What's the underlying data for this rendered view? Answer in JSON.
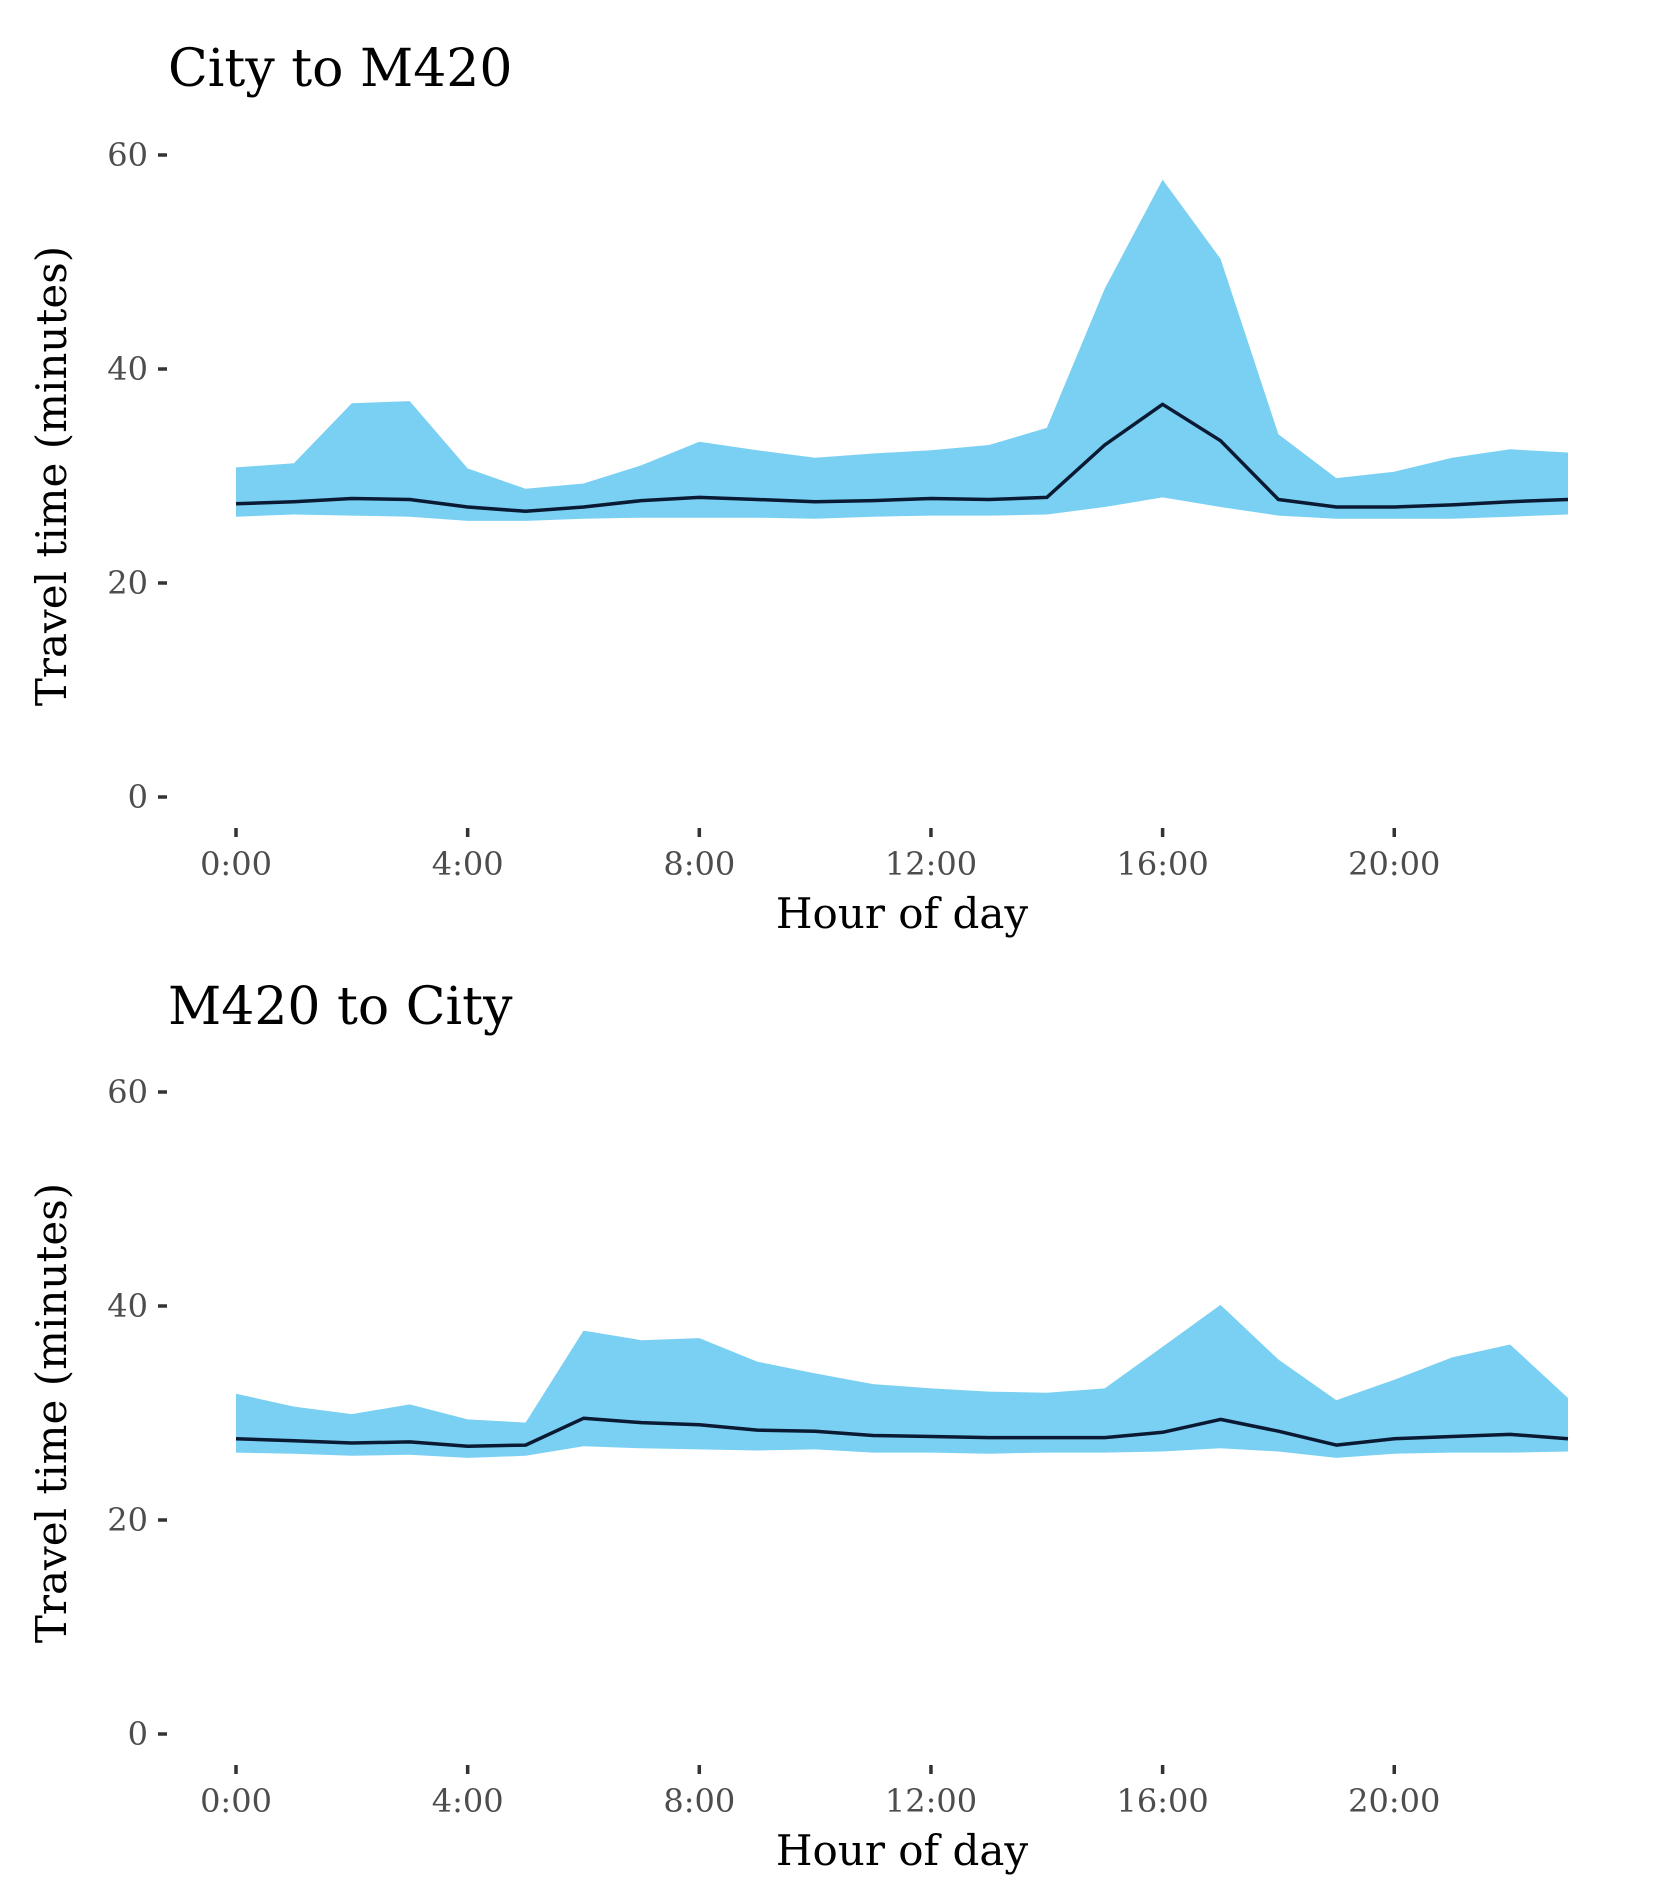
{
  "chart_data": [
    {
      "type": "area",
      "title": "City to M420",
      "xlabel": "Hour of day",
      "ylabel": "Travel time (minutes)",
      "xlim": [
        0,
        23
      ],
      "ylim": [
        0,
        60
      ],
      "x_ticks": [
        0,
        4,
        8,
        12,
        16,
        20
      ],
      "x_tick_labels": [
        "0:00",
        "4:00",
        "8:00",
        "12:00",
        "16:00",
        "20:00"
      ],
      "y_ticks": [
        0,
        20,
        40,
        60
      ],
      "y_tick_labels": [
        "0",
        "20",
        "40",
        "60"
      ],
      "grid": false,
      "band_color": "#79d0f3",
      "line_color": "#0b1a33",
      "x": [
        0,
        1,
        2,
        3,
        4,
        5,
        6,
        7,
        8,
        9,
        10,
        11,
        12,
        13,
        14,
        15,
        16,
        17,
        18,
        19,
        20,
        21,
        22,
        23
      ],
      "series": [
        {
          "role": "upper",
          "values": [
            30.8,
            31.2,
            36.8,
            37.0,
            30.7,
            28.8,
            29.3,
            31.0,
            33.2,
            32.4,
            31.7,
            32.1,
            32.4,
            32.9,
            34.5,
            47.5,
            57.7,
            50.3,
            33.9,
            29.8,
            30.4,
            31.7,
            32.5,
            32.2
          ]
        },
        {
          "role": "median",
          "values": [
            27.4,
            27.6,
            27.9,
            27.8,
            27.1,
            26.7,
            27.1,
            27.7,
            28.0,
            27.8,
            27.6,
            27.7,
            27.9,
            27.8,
            28.0,
            32.9,
            36.7,
            33.3,
            27.8,
            27.1,
            27.1,
            27.3,
            27.6,
            27.8
          ]
        },
        {
          "role": "lower",
          "values": [
            26.2,
            26.4,
            26.3,
            26.2,
            25.8,
            25.8,
            26.0,
            26.1,
            26.1,
            26.1,
            26.0,
            26.2,
            26.3,
            26.3,
            26.4,
            27.1,
            28.0,
            27.1,
            26.3,
            26.0,
            26.0,
            26.0,
            26.2,
            26.4
          ]
        }
      ]
    },
    {
      "type": "area",
      "title": "M420 to City",
      "xlabel": "Hour of day",
      "ylabel": "Travel time (minutes)",
      "xlim": [
        0,
        23
      ],
      "ylim": [
        0,
        60
      ],
      "x_ticks": [
        0,
        4,
        8,
        12,
        16,
        20
      ],
      "x_tick_labels": [
        "0:00",
        "4:00",
        "8:00",
        "12:00",
        "16:00",
        "20:00"
      ],
      "y_ticks": [
        0,
        20,
        40,
        60
      ],
      "y_tick_labels": [
        "0",
        "20",
        "40",
        "60"
      ],
      "grid": false,
      "band_color": "#79d0f3",
      "line_color": "#0b1a33",
      "x": [
        0,
        1,
        2,
        3,
        4,
        5,
        6,
        7,
        8,
        9,
        10,
        11,
        12,
        13,
        14,
        15,
        16,
        17,
        18,
        19,
        20,
        21,
        22,
        23
      ],
      "series": [
        {
          "role": "upper",
          "values": [
            31.8,
            30.6,
            29.9,
            30.8,
            29.4,
            29.1,
            37.7,
            36.8,
            37.0,
            34.8,
            33.7,
            32.7,
            32.3,
            32.0,
            31.9,
            32.3,
            36.2,
            40.1,
            35.0,
            31.2,
            33.1,
            35.2,
            36.4,
            31.4
          ]
        },
        {
          "role": "median",
          "values": [
            27.6,
            27.4,
            27.2,
            27.3,
            26.9,
            27.0,
            29.5,
            29.1,
            28.9,
            28.4,
            28.3,
            27.9,
            27.8,
            27.7,
            27.7,
            27.7,
            28.2,
            29.4,
            28.3,
            27.0,
            27.6,
            27.8,
            28.0,
            27.6
          ]
        },
        {
          "role": "lower",
          "values": [
            26.3,
            26.2,
            26.0,
            26.1,
            25.8,
            26.0,
            26.9,
            26.7,
            26.6,
            26.5,
            26.6,
            26.3,
            26.3,
            26.2,
            26.3,
            26.3,
            26.4,
            26.7,
            26.4,
            25.8,
            26.2,
            26.3,
            26.3,
            26.4
          ]
        }
      ]
    }
  ]
}
